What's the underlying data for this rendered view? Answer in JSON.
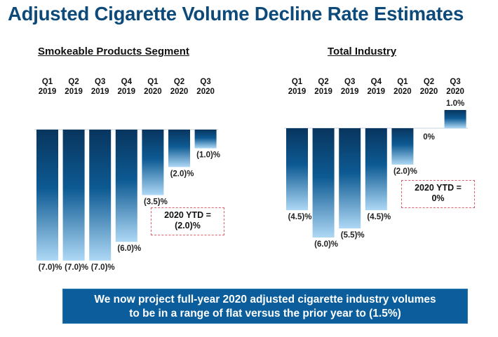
{
  "page": {
    "title": "Adjusted Cigarette Volume Decline Rate Estimates",
    "banner_line1": "We now project full-year 2020 adjusted cigarette industry volumes",
    "banner_line2": "to be in a range of flat versus the prior year to (1.5%)"
  },
  "colors": {
    "title": "#0d4a7a",
    "bar_dark": "#0a3a64",
    "bar_light": "#a9d4f2",
    "banner_bg": "#0b5e9b",
    "ytd_border": "#d9606a"
  },
  "chart_data": [
    {
      "type": "bar",
      "title": "Smokeable Products Segment",
      "categories": [
        [
          "Q1",
          "2019"
        ],
        [
          "Q2",
          "2019"
        ],
        [
          "Q3",
          "2019"
        ],
        [
          "Q4",
          "2019"
        ],
        [
          "Q1",
          "2020"
        ],
        [
          "Q2",
          "2020"
        ],
        [
          "Q3",
          "2020"
        ]
      ],
      "values": [
        -7.0,
        -7.0,
        -7.0,
        -6.0,
        -3.5,
        -2.0,
        -1.0
      ],
      "data_labels": [
        "(7.0)%",
        "(7.0)%",
        "(7.0)%",
        "(6.0)%",
        "(3.5)%",
        "(2.0)%",
        "(1.0)%"
      ],
      "annotation": {
        "line1": "2020 YTD =",
        "line2": "(2.0)%"
      },
      "xlabel": "",
      "ylabel": "",
      "ylim": [
        -7.0,
        0
      ],
      "grid": false
    },
    {
      "type": "bar",
      "title": "Total Industry",
      "categories": [
        [
          "Q1",
          "2019"
        ],
        [
          "Q2",
          "2019"
        ],
        [
          "Q3",
          "2019"
        ],
        [
          "Q4",
          "2019"
        ],
        [
          "Q1",
          "2020"
        ],
        [
          "Q2",
          "2020"
        ],
        [
          "Q3",
          "2020"
        ]
      ],
      "values": [
        -4.5,
        -6.0,
        -5.5,
        -4.5,
        -2.0,
        0.0,
        1.0
      ],
      "data_labels": [
        "(4.5)%",
        "(6.0)%",
        "(5.5)%",
        "(4.5)%",
        "(2.0)%",
        "0%",
        "1.0%"
      ],
      "annotation": {
        "line1": "2020 YTD =",
        "line2": "0%"
      },
      "xlabel": "",
      "ylabel": "",
      "ylim": [
        -6.0,
        1.0
      ],
      "grid": false
    }
  ]
}
